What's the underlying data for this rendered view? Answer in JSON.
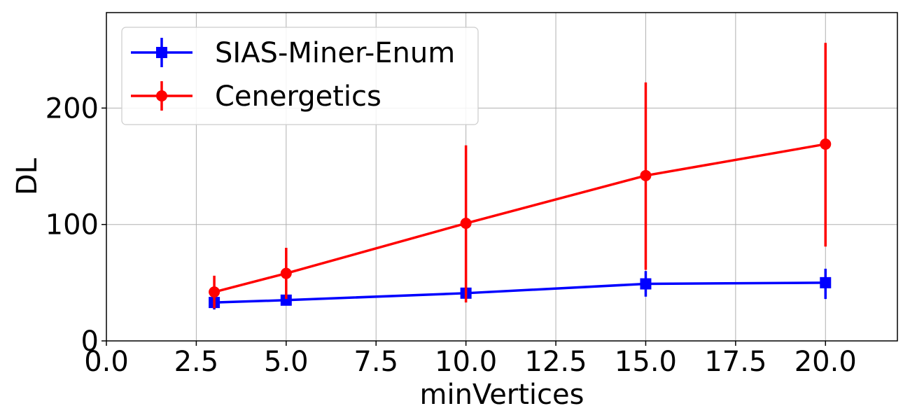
{
  "chart_data": {
    "type": "line",
    "xlabel": "minVertices",
    "ylabel": "DL",
    "xlim": [
      0,
      22
    ],
    "ylim": [
      0,
      282
    ],
    "xticks": [
      0,
      2.5,
      5,
      7.5,
      10,
      12.5,
      15,
      17.5,
      20
    ],
    "xtick_labels": [
      "0.0",
      "2.5",
      "5.0",
      "7.5",
      "10.0",
      "12.5",
      "15.0",
      "17.5",
      "20.0"
    ],
    "yticks": [
      0,
      100,
      200
    ],
    "ytick_labels": [
      "0",
      "100",
      "200"
    ],
    "grid": true,
    "legend_position": "top-left",
    "series": [
      {
        "name": "SIAS-Miner-Enum",
        "color": "#0000ff",
        "marker": "square",
        "x": [
          3,
          5,
          10,
          15,
          20
        ],
        "y": [
          33,
          35,
          41,
          49,
          50
        ],
        "err_low": [
          27,
          31,
          36,
          38,
          36
        ],
        "err_high": [
          37,
          39,
          46,
          60,
          62
        ]
      },
      {
        "name": "Cenergetics",
        "color": "#ff0000",
        "marker": "circle",
        "x": [
          3,
          5,
          10,
          15,
          20
        ],
        "y": [
          42,
          58,
          101,
          142,
          169
        ],
        "err_low": [
          28,
          36,
          33,
          61,
          81
        ],
        "err_high": [
          56,
          80,
          168,
          222,
          256
        ]
      }
    ]
  }
}
